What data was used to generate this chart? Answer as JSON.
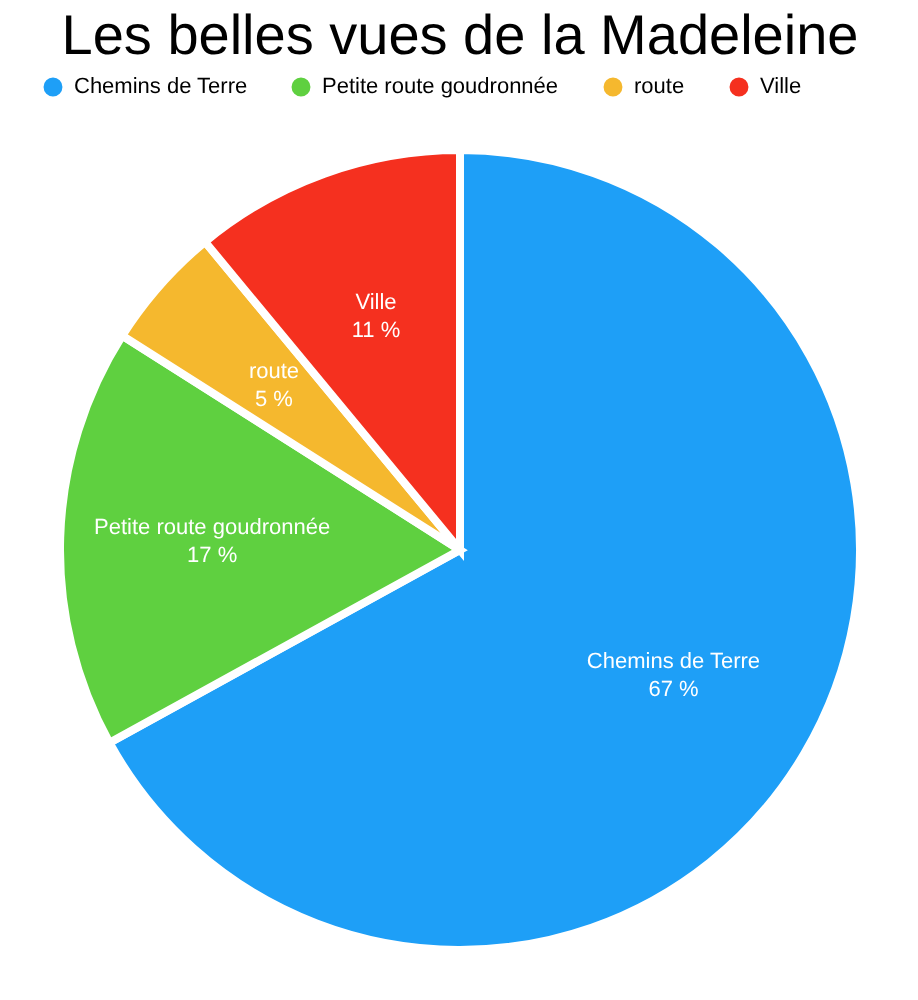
{
  "chart_data": {
    "type": "pie",
    "title": "Les belles vues de la Madeleine",
    "categories": [
      "Chemins de Terre",
      "Petite route goudronnée",
      "route",
      "Ville"
    ],
    "values": [
      67,
      17,
      5,
      11
    ],
    "colors": [
      "#1e9ff7",
      "#5fd040",
      "#f5b82e",
      "#f5301f"
    ],
    "value_labels": [
      "67 %",
      "17 %",
      "5 %",
      "11 %"
    ],
    "legend": "top"
  }
}
